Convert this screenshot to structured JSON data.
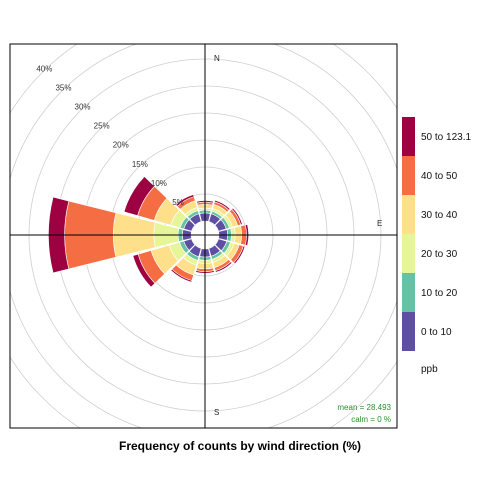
{
  "chart_data": {
    "type": "windrose",
    "title": "",
    "xlabel": "Frequency of counts by wind direction (%)",
    "directions": [
      "N",
      "E",
      "S"
    ],
    "rings": [
      {
        "value": 5,
        "label": "5%"
      },
      {
        "value": 10,
        "label": "10%"
      },
      {
        "value": 15,
        "label": "15%"
      },
      {
        "value": 20,
        "label": "20%"
      },
      {
        "value": 25,
        "label": "25%"
      },
      {
        "value": 30,
        "label": "30%"
      },
      {
        "value": 35,
        "label": "35%"
      },
      {
        "value": 40,
        "label": "40%"
      }
    ],
    "legend": {
      "title": "ppb",
      "items": [
        {
          "label": "50 to 123.1",
          "color": "#9e0142"
        },
        {
          "label": "40 to 50",
          "color": "#f46d43"
        },
        {
          "label": "30 to 40",
          "color": "#fee08b"
        },
        {
          "label": "20 to 30",
          "color": "#e6f598"
        },
        {
          "label": "10 to 20",
          "color": "#66c2a5"
        },
        {
          "label": "0 to 10",
          "color": "#5e4fa2"
        }
      ]
    },
    "series_order": [
      "0 to 10",
      "10 to 20",
      "20 to 30",
      "30 to 40",
      "40 to 50",
      "50 to 123.1"
    ],
    "sectors": [
      {
        "angle": 0,
        "values": [
          1.5,
          0.5,
          0.4,
          0.7,
          0.4,
          0.3
        ]
      },
      {
        "angle": 30,
        "values": [
          1.5,
          0.5,
          0.5,
          0.8,
          0.5,
          0.3
        ]
      },
      {
        "angle": 60,
        "values": [
          1.5,
          0.6,
          0.6,
          1.0,
          0.6,
          0.3
        ]
      },
      {
        "angle": 90,
        "values": [
          1.6,
          0.7,
          0.7,
          1.2,
          0.9,
          0.4
        ]
      },
      {
        "angle": 120,
        "values": [
          1.6,
          0.7,
          0.7,
          1.0,
          0.8,
          0.3
        ]
      },
      {
        "angle": 150,
        "values": [
          1.5,
          0.6,
          0.6,
          1.0,
          0.6,
          0.3
        ]
      },
      {
        "angle": 180,
        "values": [
          1.5,
          0.6,
          0.6,
          1.0,
          0.5,
          0.3
        ]
      },
      {
        "angle": 210,
        "values": [
          1.6,
          0.7,
          0.9,
          1.9,
          1.1,
          0.3
        ]
      },
      {
        "angle": 240,
        "values": [
          1.5,
          0.8,
          2.0,
          3.5,
          2.5,
          1.0
        ]
      },
      {
        "angle": 270,
        "values": [
          1.6,
          0.8,
          4.5,
          7.5,
          9.0,
          3.0
        ]
      },
      {
        "angle": 300,
        "values": [
          1.5,
          0.7,
          1.8,
          3.2,
          3.2,
          2.6
        ]
      },
      {
        "angle": 330,
        "values": [
          1.5,
          0.6,
          0.6,
          1.3,
          0.8,
          0.4
        ]
      }
    ],
    "sector_width_deg": 28,
    "rlim": [
      0,
      40
    ],
    "grid": true,
    "stats": {
      "mean": "mean = 28.493",
      "calm": "calm = 0 %"
    }
  }
}
